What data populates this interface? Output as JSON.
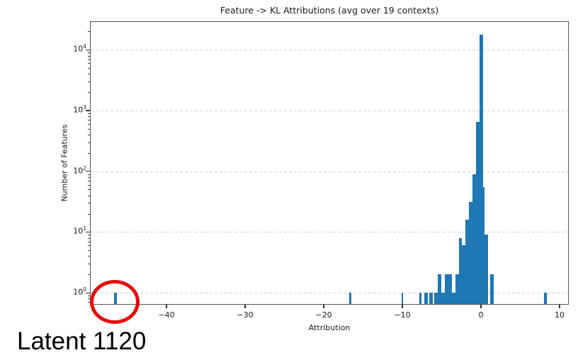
{
  "title": "Feature -> KL Attributions (avg over 19 contexts)",
  "annotation": {
    "latent_label": "Latent 1120",
    "circled_point": {
      "attribution": -46.5,
      "count": 1
    }
  },
  "colors": {
    "bar": "#1f77b4",
    "circle": "#e50d0d",
    "grid": "#cfcfcf",
    "spine": "#565656",
    "text": "#1a1a1a"
  },
  "chart_data": {
    "type": "bar",
    "subtype": "histogram",
    "title": "Feature -> KL Attributions (avg over 19 contexts)",
    "xlabel": "Attribution",
    "ylabel": "Number of Features",
    "y_scale": "log",
    "xlim": [
      -49.7,
      11.2
    ],
    "ylim": [
      0.62,
      30000
    ],
    "grid": "y-dashed",
    "bin_width": 0.445,
    "x_ticks": [
      {
        "v": -40,
        "label": "−40"
      },
      {
        "v": -30,
        "label": "−30"
      },
      {
        "v": -20,
        "label": "−20"
      },
      {
        "v": -10,
        "label": "−10"
      },
      {
        "v": 0,
        "label": "0"
      },
      {
        "v": 10,
        "label": "10"
      }
    ],
    "y_tick_exponents": [
      0,
      1,
      2,
      3,
      4
    ],
    "bars": [
      {
        "x": -46.5,
        "count": 1,
        "w": 0.3
      },
      {
        "x": -16.6,
        "count": 1,
        "w": 0.3
      },
      {
        "x": -10.0,
        "count": 1,
        "w": 0.25
      },
      {
        "x": -7.7,
        "count": 1,
        "w": 0.3
      },
      {
        "x": -7.0,
        "count": 1
      },
      {
        "x": -6.35,
        "count": 1
      },
      {
        "x": -5.74,
        "count": 1
      },
      {
        "x": -5.29,
        "count": 2
      },
      {
        "x": -4.85,
        "count": 1
      },
      {
        "x": -4.4,
        "count": 2
      },
      {
        "x": -3.95,
        "count": 2
      },
      {
        "x": -3.5,
        "count": 1
      },
      {
        "x": -3.06,
        "count": 2
      },
      {
        "x": -2.61,
        "count": 8
      },
      {
        "x": -2.17,
        "count": 6
      },
      {
        "x": -1.73,
        "count": 16
      },
      {
        "x": -1.28,
        "count": 31
      },
      {
        "x": -0.84,
        "count": 90
      },
      {
        "x": -0.39,
        "count": 650
      },
      {
        "x": 0.05,
        "count": 17500
      },
      {
        "x": 0.35,
        "count": 55,
        "w": 0.25
      },
      {
        "x": 0.7,
        "count": 9
      },
      {
        "x": 1.39,
        "count": 2
      },
      {
        "x": 8.2,
        "count": 1,
        "w": 0.3
      }
    ]
  }
}
